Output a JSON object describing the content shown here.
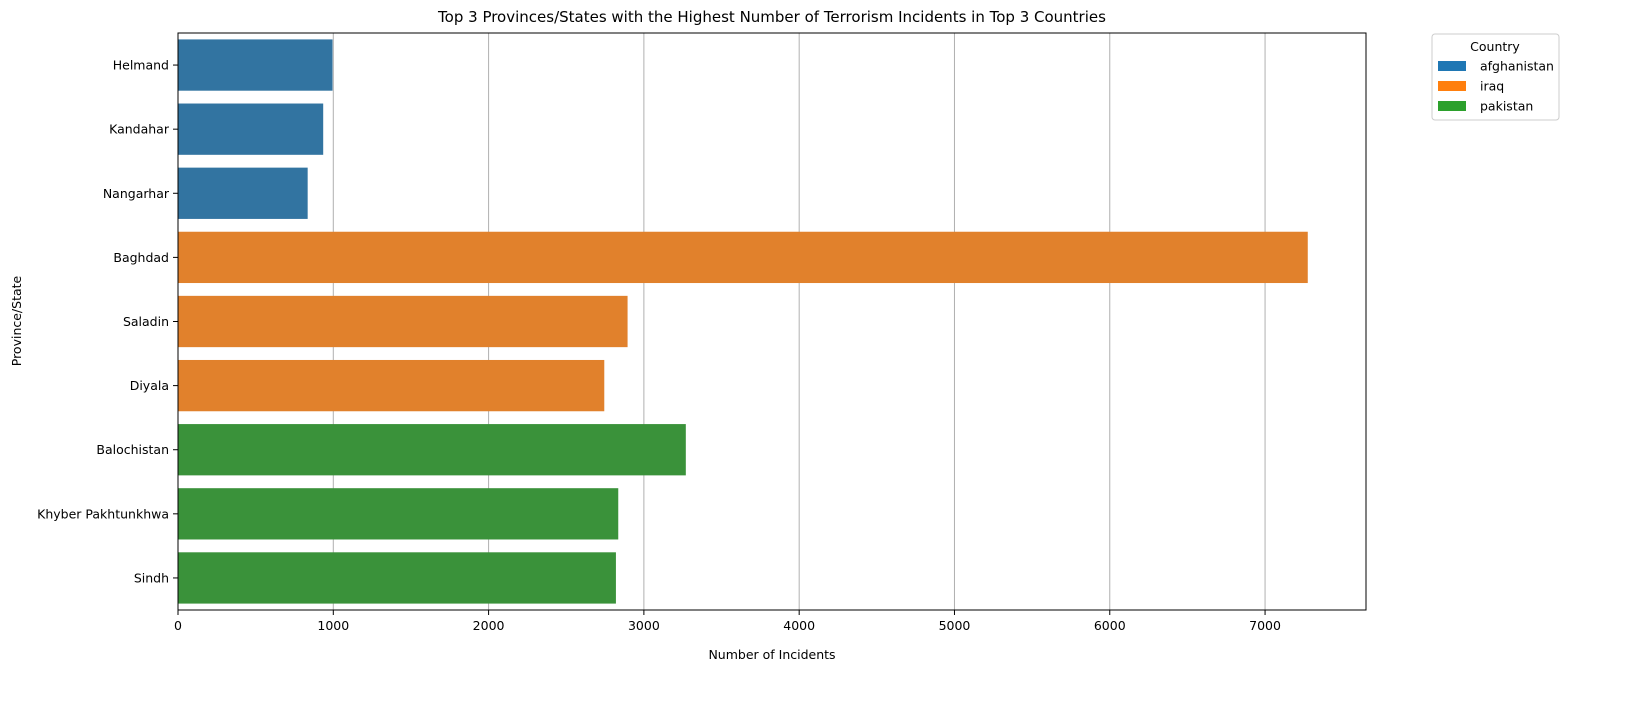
{
  "chart_data": {
    "type": "bar",
    "orientation": "horizontal",
    "title": "Top 3 Provinces/States with the Highest Number of Terrorism Incidents in Top 3 Countries",
    "xlabel": "Number of Incidents",
    "ylabel": "Province/State",
    "xlim": [
      0,
      7650
    ],
    "xticks": [
      0,
      1000,
      2000,
      3000,
      4000,
      5000,
      6000,
      7000
    ],
    "grid": "vertical",
    "legend": {
      "title": "Country",
      "placement": "outside-top-right",
      "entries": [
        {
          "name": "afghanistan",
          "color": "#1f77b4",
          "bar_color": "#3274a1"
        },
        {
          "name": "iraq",
          "color": "#ff7f0e",
          "bar_color": "#e1812c"
        },
        {
          "name": "pakistan",
          "color": "#2ca02c",
          "bar_color": "#3a923a"
        }
      ]
    },
    "categories": [
      "Helmand",
      "Kandahar",
      "Nangarhar",
      "Baghdad",
      "Saladin",
      "Diyala",
      "Balochistan",
      "Khyber Pakhtunkhwa",
      "Sindh"
    ],
    "bars": [
      {
        "label": "Helmand",
        "country": "afghanistan",
        "value": 995
      },
      {
        "label": "Kandahar",
        "country": "afghanistan",
        "value": 935
      },
      {
        "label": "Nangarhar",
        "country": "afghanistan",
        "value": 835
      },
      {
        "label": "Baghdad",
        "country": "iraq",
        "value": 7275
      },
      {
        "label": "Saladin",
        "country": "iraq",
        "value": 2895
      },
      {
        "label": "Diyala",
        "country": "iraq",
        "value": 2745
      },
      {
        "label": "Balochistan",
        "country": "pakistan",
        "value": 3270
      },
      {
        "label": "Khyber Pakhtunkhwa",
        "country": "pakistan",
        "value": 2835
      },
      {
        "label": "Sindh",
        "country": "pakistan",
        "value": 2820
      }
    ]
  }
}
